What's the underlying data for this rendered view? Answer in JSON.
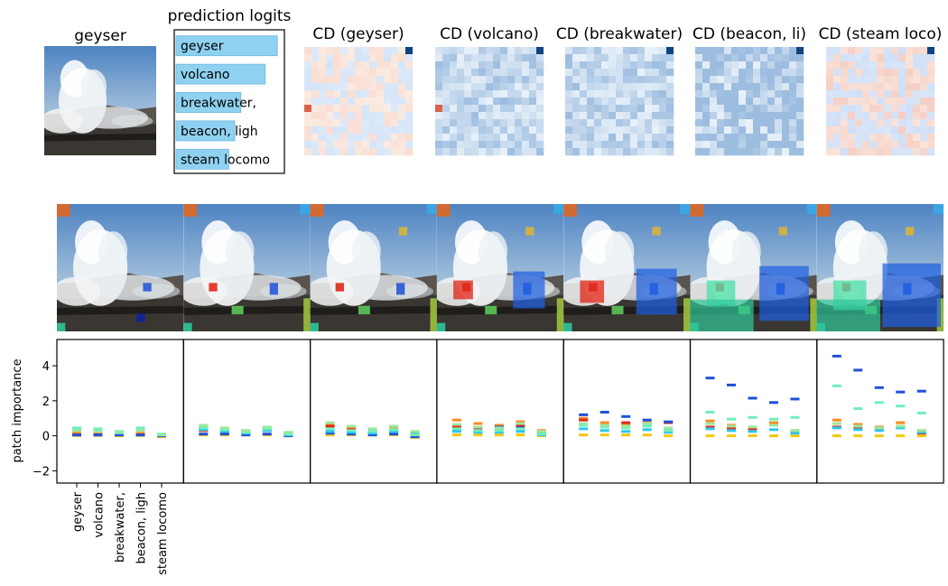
{
  "input": {
    "title": "geyser"
  },
  "logits": {
    "title": "prediction logits",
    "labels": [
      "geyser",
      "volcano",
      "breakwater,",
      "beacon, ligh",
      "steam locomo"
    ],
    "bar_color": "#8fd1f0",
    "chart_data": {
      "type": "bar",
      "orientation": "horizontal",
      "categories": [
        "geyser",
        "volcano",
        "breakwater,",
        "beacon, ligh",
        "steam locomo"
      ],
      "values": [
        1.0,
        0.88,
        0.64,
        0.58,
        0.52
      ],
      "xlim": [
        0,
        1.07
      ]
    }
  },
  "cd_maps": [
    {
      "title": "CD (geyser)",
      "tint": "mixed"
    },
    {
      "title": "CD (volcano)",
      "tint": "blue"
    },
    {
      "title": "CD (breakwater)",
      "tint": "blue"
    },
    {
      "title": "CD (beacon, li)",
      "tint": "blue_strong"
    },
    {
      "title": "CD (steam loco)",
      "tint": "orange"
    }
  ],
  "segmentation_steps": 7,
  "importance": {
    "ylabel": "patch importance",
    "xticklabels": [
      "geyser",
      "volcano",
      "breakwater,",
      "beacon, ligh",
      "steam locomo"
    ],
    "colors": [
      "#f2c80f",
      "#ff8a1f",
      "#e02818",
      "#1f50d8",
      "#28c8f0",
      "#6ef0b8",
      "#9be8a0"
    ],
    "chart_data": {
      "type": "scatter",
      "ylabel": "patch importance",
      "ylim": [
        -2.7,
        5.5
      ],
      "yticks": [
        -2,
        0,
        2,
        4
      ],
      "categories": [
        "geyser",
        "volcano",
        "breakwater,",
        "beacon, ligh",
        "steam locomo"
      ],
      "panels": [
        {
          "points": [
            [
              0.02,
              0.2,
              0.05,
              0.05,
              0.35,
              0.45,
              0.3
            ],
            [
              0.02,
              0.15,
              0.05,
              0.05,
              0.3,
              0.4,
              0.25
            ],
            [
              0.0,
              0.1,
              0.05,
              0.05,
              0.15,
              0.25,
              0.2
            ],
            [
              0.02,
              0.15,
              0.05,
              0.05,
              0.35,
              0.45,
              0.3
            ],
            [
              -0.05,
              0.05,
              0.0,
              0.0,
              0.05,
              0.1,
              0.05
            ]
          ]
        },
        {
          "points": [
            [
              0.05,
              0.5,
              0.3,
              0.1,
              0.35,
              0.45,
              0.6
            ],
            [
              0.05,
              0.4,
              0.2,
              0.1,
              0.25,
              0.35,
              0.45
            ],
            [
              0.05,
              0.3,
              0.15,
              0.05,
              0.15,
              0.2,
              0.3
            ],
            [
              0.05,
              0.45,
              0.3,
              0.1,
              0.3,
              0.4,
              0.5
            ],
            [
              0.0,
              0.15,
              0.1,
              0.0,
              0.05,
              0.1,
              0.2
            ]
          ]
        },
        {
          "points": [
            [
              0.05,
              0.65,
              0.55,
              0.15,
              0.25,
              0.4,
              0.75
            ],
            [
              0.05,
              0.5,
              0.35,
              0.1,
              0.2,
              0.3,
              0.55
            ],
            [
              0.05,
              0.35,
              0.2,
              0.05,
              0.15,
              0.25,
              0.4
            ],
            [
              0.05,
              0.5,
              0.3,
              0.1,
              0.25,
              0.35,
              0.55
            ],
            [
              -0.1,
              0.15,
              0.05,
              -0.05,
              0.1,
              0.05,
              0.25
            ]
          ]
        },
        {
          "points": [
            [
              0.05,
              0.9,
              0.55,
              0.35,
              0.25,
              0.4,
              0.65
            ],
            [
              0.05,
              0.7,
              0.45,
              0.25,
              0.2,
              0.3,
              0.5
            ],
            [
              0.05,
              0.6,
              0.45,
              0.5,
              0.2,
              0.3,
              0.45
            ],
            [
              0.05,
              0.8,
              0.6,
              0.45,
              0.25,
              0.4,
              0.7
            ],
            [
              0.0,
              0.3,
              0.15,
              0.2,
              0.05,
              0.1,
              0.25
            ]
          ]
        },
        {
          "points": [
            [
              0.05,
              1.0,
              0.9,
              1.2,
              0.4,
              0.6,
              0.7
            ],
            [
              0.05,
              0.75,
              0.55,
              1.35,
              0.3,
              0.5,
              0.6
            ],
            [
              0.05,
              0.6,
              0.75,
              1.1,
              0.25,
              0.45,
              0.55
            ],
            [
              0.05,
              0.85,
              0.65,
              0.9,
              0.35,
              0.55,
              0.7
            ],
            [
              0.0,
              0.4,
              0.75,
              0.8,
              0.2,
              0.3,
              0.45
            ]
          ]
        },
        {
          "points": [
            [
              0.0,
              0.85,
              0.5,
              3.3,
              0.4,
              1.35,
              0.7
            ],
            [
              0.0,
              0.6,
              0.45,
              2.9,
              0.3,
              0.95,
              0.55
            ],
            [
              0.0,
              0.5,
              0.4,
              2.15,
              0.25,
              1.05,
              0.5
            ],
            [
              0.0,
              0.75,
              0.6,
              1.9,
              0.35,
              0.95,
              0.6
            ],
            [
              0.0,
              0.3,
              0.2,
              2.1,
              0.15,
              1.05,
              0.3
            ]
          ]
        },
        {
          "points": [
            [
              0.0,
              0.9,
              0.5,
              4.55,
              0.45,
              2.85,
              0.7
            ],
            [
              0.0,
              0.65,
              0.45,
              3.75,
              0.35,
              1.55,
              0.55
            ],
            [
              0.0,
              0.5,
              0.4,
              2.75,
              0.3,
              1.9,
              0.45
            ],
            [
              0.0,
              0.75,
              0.55,
              2.5,
              0.45,
              1.7,
              0.55
            ],
            [
              0.0,
              0.3,
              0.15,
              2.55,
              0.2,
              1.3,
              0.3
            ]
          ]
        }
      ]
    }
  }
}
